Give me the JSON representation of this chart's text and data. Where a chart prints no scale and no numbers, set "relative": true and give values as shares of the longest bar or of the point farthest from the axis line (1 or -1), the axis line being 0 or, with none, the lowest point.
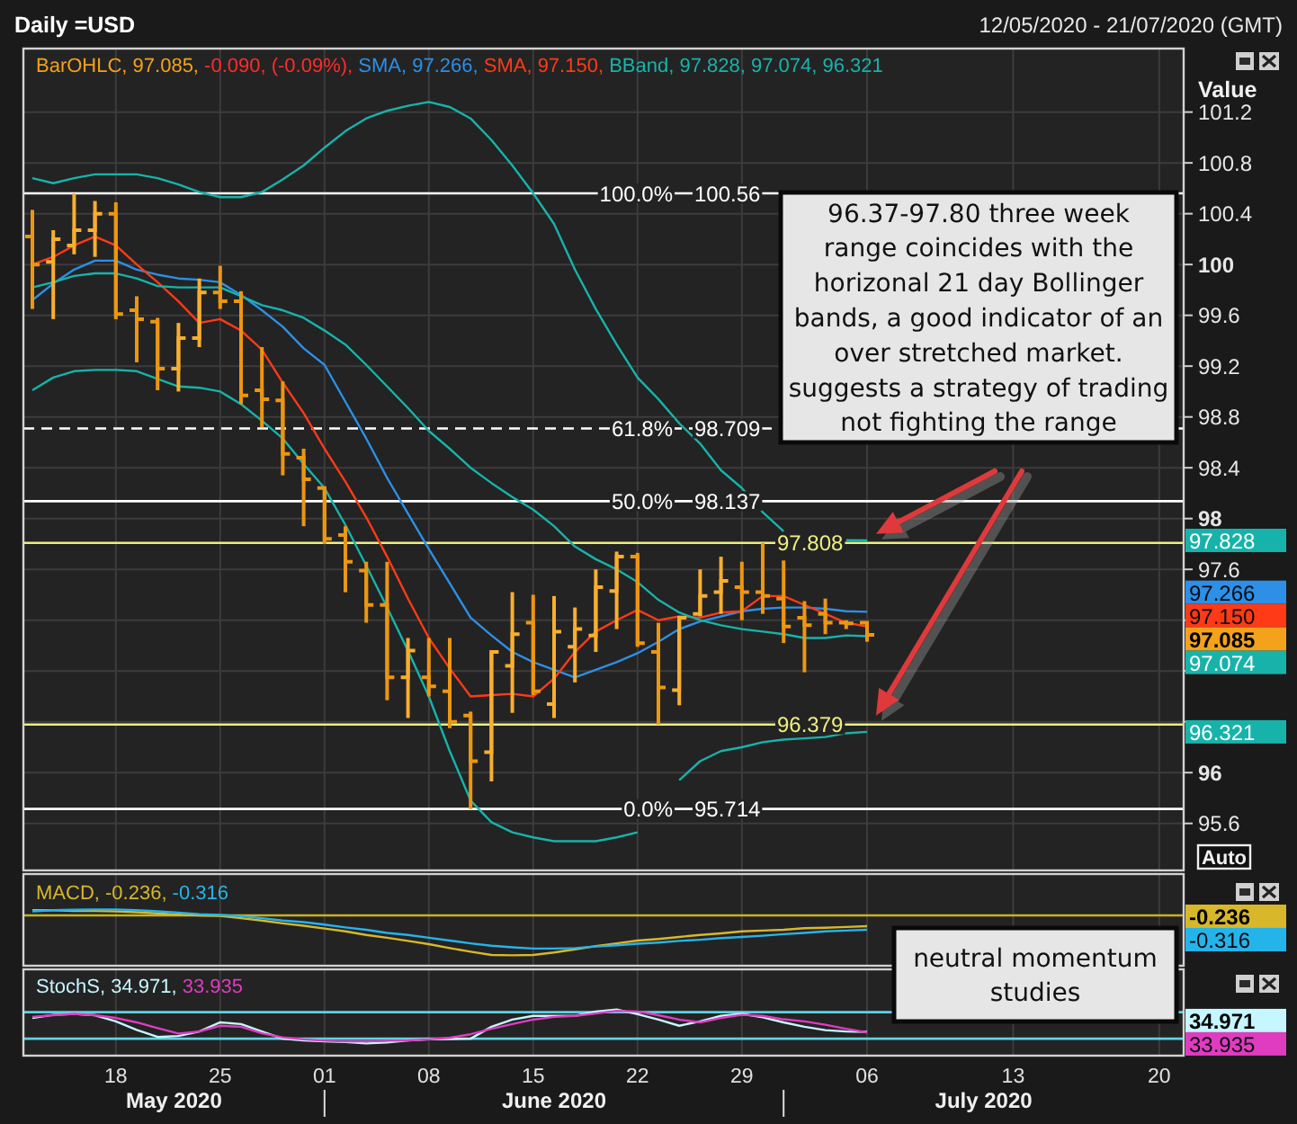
{
  "chart_data": [
    {
      "type": "candlestick",
      "title": "Daily =USD",
      "subtitle": "12/05/2020 - 21/07/2020 (GMT)",
      "ylabel": "Value",
      "categories": [
        null,
        null,
        null,
        null,
        "18",
        null,
        null,
        null,
        null,
        "25",
        null,
        null,
        null,
        null,
        "01",
        null,
        null,
        null,
        null,
        "08",
        null,
        null,
        null,
        null,
        "15",
        null,
        null,
        null,
        null,
        "22",
        null,
        null,
        null,
        null,
        "29",
        null,
        null,
        null,
        null,
        null,
        "06",
        null,
        null,
        null,
        null,
        null,
        null,
        "13",
        null,
        null,
        null,
        null,
        null,
        null,
        "20",
        null
      ],
      "color": "#f4a21c",
      "colors": [
        "#ec9612",
        "#f8ae30",
        "#f8ae30",
        "#f8ae30",
        "#ec9612",
        "#ec9612",
        "#ec9612",
        "#f8ae30",
        "#f8ae30",
        "#ec9612",
        "#ec9612",
        "#ec9612",
        "#ec9612",
        "#ec9612",
        "#ec9612",
        "#ec9612",
        "#ec9612",
        "#ec9612",
        "#f8ae30",
        "#ec9612",
        "#ec9612",
        "#ec9612",
        "#f8ae30",
        "#f8ae30",
        "#ec9612",
        "#f8ae30",
        "#f8ae30",
        "#f8ae30",
        "#f8ae30",
        "#ec9612",
        "#ec9612",
        "#f8ae30",
        "#f8ae30",
        "#f8ae30",
        "#ec9612",
        "#ec9612",
        "#ec9612",
        "#ec9612",
        "#ec9612",
        "#ec9612",
        "#ec9612",
        null,
        null,
        null,
        null,
        null,
        null,
        null,
        null,
        null,
        null,
        null,
        null,
        null,
        null,
        null
      ],
      "ohlc": [
        [
          100.22,
          100.43,
          99.65,
          100.0
        ],
        [
          100.02,
          100.27,
          99.57,
          100.2
        ],
        [
          100.15,
          100.56,
          100.08,
          100.27
        ],
        [
          100.27,
          100.5,
          100.06,
          100.4
        ],
        [
          100.4,
          100.49,
          99.57,
          99.61
        ],
        [
          99.64,
          99.75,
          99.23,
          99.57
        ],
        [
          99.55,
          99.58,
          99.01,
          99.18
        ],
        [
          99.18,
          99.54,
          99.0,
          99.42
        ],
        [
          99.42,
          99.89,
          99.35,
          99.78
        ],
        [
          99.78,
          99.99,
          99.65,
          99.71
        ],
        [
          99.71,
          99.79,
          98.9,
          98.97
        ],
        [
          99.01,
          99.35,
          98.72,
          98.94
        ],
        [
          98.93,
          99.08,
          98.34,
          98.51
        ],
        [
          98.48,
          98.55,
          97.94,
          98.31
        ],
        [
          98.24,
          98.25,
          97.8,
          97.84
        ],
        [
          97.87,
          97.94,
          97.42,
          97.66
        ],
        [
          97.59,
          97.66,
          97.18,
          97.32
        ],
        [
          97.32,
          97.66,
          96.57,
          96.75
        ],
        [
          96.75,
          97.06,
          96.43,
          96.96
        ],
        [
          96.75,
          97.06,
          96.6,
          96.68
        ],
        [
          96.64,
          97.06,
          96.35,
          96.4
        ],
        [
          96.45,
          96.48,
          95.714,
          96.09
        ],
        [
          96.16,
          96.96,
          95.93,
          96.95
        ],
        [
          96.84,
          97.42,
          96.47,
          97.09
        ],
        [
          97.18,
          97.4,
          96.61,
          96.64
        ],
        [
          96.54,
          97.39,
          96.43,
          97.11
        ],
        [
          96.99,
          97.3,
          96.71,
          97.13
        ],
        [
          97.08,
          97.6,
          96.95,
          97.46
        ],
        [
          97.43,
          97.74,
          97.13,
          97.7
        ],
        [
          97.7,
          97.73,
          96.99,
          97.02
        ],
        [
          96.95,
          97.18,
          96.379,
          96.67
        ],
        [
          96.65,
          97.23,
          96.53,
          97.22
        ],
        [
          97.25,
          97.6,
          97.23,
          97.39
        ],
        [
          97.42,
          97.7,
          97.25,
          97.51
        ],
        [
          97.46,
          97.66,
          97.2,
          97.42
        ],
        [
          97.42,
          97.808,
          97.25,
          97.39
        ],
        [
          97.37,
          97.67,
          97.02,
          97.15
        ],
        [
          97.22,
          97.35,
          96.79,
          97.16
        ],
        [
          97.25,
          97.37,
          97.09,
          97.18
        ],
        [
          97.18,
          97.2,
          97.13,
          97.175
        ],
        [
          97.18,
          97.19,
          97.03,
          97.085
        ],
        null,
        null,
        null,
        null,
        null,
        null,
        null,
        null,
        null,
        null,
        null,
        null,
        null,
        null,
        null
      ],
      "series": [
        {
          "type": "line",
          "color": "#2d8fe6",
          "values": [
            99.72,
            99.85,
            99.96,
            100.03,
            100.03,
            99.96,
            99.92,
            99.89,
            99.88,
            99.86,
            99.76,
            99.64,
            99.51,
            99.34,
            99.21,
            98.92,
            98.63,
            98.32,
            98.04,
            97.76,
            97.49,
            97.22,
            97.08,
            96.95,
            96.87,
            96.81,
            96.75,
            96.81,
            96.87,
            96.94,
            97.03,
            97.13,
            97.19,
            97.23,
            97.27,
            97.29,
            97.3,
            97.3,
            97.29,
            97.27,
            97.266,
            null,
            null,
            null,
            null,
            null,
            null,
            null,
            null,
            null,
            null,
            null,
            null,
            null,
            null,
            null
          ]
        },
        {
          "type": "line",
          "color": "#ff3a17",
          "values": [
            100.0,
            100.06,
            100.15,
            100.22,
            100.15,
            100.0,
            99.86,
            99.71,
            99.54,
            99.57,
            99.48,
            99.33,
            99.07,
            98.83,
            98.55,
            98.29,
            98.01,
            97.7,
            97.37,
            97.06,
            96.82,
            96.6,
            96.61,
            96.62,
            96.6,
            96.74,
            96.95,
            97.11,
            97.2,
            97.28,
            97.2,
            97.23,
            97.22,
            97.26,
            97.27,
            97.39,
            97.39,
            97.32,
            97.25,
            97.18,
            97.15,
            null,
            null,
            null,
            null,
            null,
            null,
            null,
            null,
            null,
            null,
            null,
            null,
            null,
            null,
            null
          ]
        },
        {
          "type": "line",
          "color": "#17b3aa",
          "values": [
            100.68,
            100.64,
            100.68,
            100.71,
            100.71,
            100.71,
            100.68,
            100.63,
            100.57,
            100.53,
            100.53,
            100.57,
            100.67,
            100.78,
            100.92,
            101.05,
            101.15,
            101.21,
            101.25,
            101.28,
            101.24,
            101.15,
            100.98,
            100.78,
            100.56,
            100.32,
            99.96,
            99.65,
            99.37,
            99.11,
            98.94,
            98.75,
            98.59,
            98.38,
            98.24,
            98.05,
            97.9,
            null,
            null,
            97.83,
            97.828,
            null,
            null,
            null,
            null,
            null,
            null,
            null,
            null,
            null,
            null,
            null,
            null,
            null,
            null,
            null
          ]
        },
        {
          "type": "line",
          "color": "#17b3aa",
          "values": [
            99.82,
            99.86,
            99.91,
            99.93,
            99.93,
            99.89,
            99.83,
            99.82,
            99.82,
            99.82,
            99.75,
            99.68,
            99.64,
            99.58,
            99.48,
            99.37,
            99.21,
            99.04,
            98.87,
            98.69,
            98.55,
            98.4,
            98.28,
            98.17,
            98.07,
            97.94,
            97.78,
            97.68,
            97.6,
            97.5,
            97.36,
            97.26,
            97.2,
            97.16,
            97.13,
            97.11,
            97.09,
            97.06,
            97.06,
            97.08,
            97.074,
            null,
            null,
            null,
            null,
            null,
            null,
            null,
            null,
            null,
            null,
            null,
            null,
            null,
            null,
            null
          ]
        },
        {
          "type": "line",
          "color": "#17b3aa",
          "values": [
            99.01,
            99.11,
            99.16,
            99.17,
            99.17,
            99.16,
            99.1,
            99.04,
            99.03,
            99.0,
            98.9,
            98.77,
            98.63,
            98.43,
            98.24,
            97.95,
            97.63,
            97.3,
            96.96,
            96.6,
            96.17,
            95.78,
            95.61,
            95.53,
            95.49,
            95.46,
            95.46,
            95.46,
            95.49,
            95.53,
            null,
            95.94,
            96.09,
            96.17,
            96.2,
            96.24,
            96.26,
            96.27,
            96.28,
            96.31,
            96.321,
            null,
            null,
            null,
            null,
            null,
            null,
            null,
            null,
            null,
            null,
            null,
            null,
            null,
            null,
            null
          ]
        }
      ],
      "ylim": [
        95.23,
        101.7
      ],
      "yticks": [
        95.6,
        96,
        {
          "value": 96.4,
          "label": null
        },
        {
          "value": 96.8,
          "label": null
        },
        {
          "value": 97.2,
          "label": null
        },
        97.6,
        98,
        98.4,
        98.8,
        99.2,
        99.6,
        100,
        100.4,
        100.8,
        101.2
      ],
      "grid": true,
      "ref_lines": [
        {
          "axis": "y",
          "value": 100.56,
          "label": "100.56",
          "color": "#ffffff"
        },
        {
          "axis": "y",
          "value": 98.709,
          "label": "98.709",
          "color": "#ffffff",
          "line_style": "dashed"
        },
        {
          "axis": "y",
          "value": 98.137,
          "label": "98.137",
          "color": "#ffffff"
        },
        {
          "axis": "y",
          "value": 95.714,
          "label": "95.714",
          "color": "#ffffff"
        },
        {
          "axis": "y",
          "value": 97.808,
          "label": "97.808",
          "color": "#eeee80"
        },
        {
          "axis": "y",
          "value": 96.379,
          "label": "96.379",
          "color": "#eeee80"
        }
      ],
      "tick_labels": "y",
      "annotations": [
        "BarOHLC, 97.085,",
        "-0.090, (-0.09%),",
        "SMA, 97.266,",
        "SMA, 97.150,",
        "BBand, 97.828, 97.074, 96.321",
        "96.37-97.80 three week range coincides with the horizonal 21 day Bollinger bands, a good indicator of an over stretched market. suggests a strategy of trading not fighting the range",
        "Auto",
        "97.085",
        "97.266",
        "97.150",
        "97.828",
        "97.074",
        "96.321",
        {
          "text": "100.0%",
          "y": 100.56
        },
        {
          "text": "61.8%",
          "y": 98.709
        },
        {
          "text": "50.0%",
          "y": 98.137
        },
        {
          "text": "0.0%",
          "y": 95.714
        }
      ]
    },
    {
      "type": "line",
      "relative": true,
      "categories": [
        null,
        null,
        null,
        null,
        "18",
        null,
        null,
        null,
        null,
        "25",
        null,
        null,
        null,
        null,
        "01",
        null,
        null,
        null,
        null,
        "08",
        null,
        null,
        null,
        null,
        "15",
        null,
        null,
        null,
        null,
        "22",
        null,
        null,
        null,
        null,
        "29",
        null,
        null,
        null,
        null,
        null,
        "06",
        null,
        null,
        null,
        null,
        null,
        null,
        "13",
        null,
        null,
        null,
        null,
        null,
        null,
        "20",
        null
      ],
      "series": [
        {
          "color": "#d8b82a",
          "values": [
            0.13,
            0.13,
            0.11,
            0.11,
            0.1,
            0.08,
            0.05,
            0.02,
            0,
            -0.01,
            -0.07,
            -0.13,
            -0.2,
            -0.26,
            -0.33,
            -0.4,
            -0.49,
            -0.56,
            -0.64,
            -0.72,
            -0.82,
            -0.91,
            -0.99,
            -1,
            -0.99,
            -0.93,
            -0.85,
            -0.77,
            -0.7,
            -0.63,
            -0.59,
            -0.54,
            -0.49,
            -0.45,
            -0.4,
            -0.38,
            -0.36,
            -0.32,
            -0.31,
            -0.29,
            -0.27,
            null,
            null,
            null,
            null,
            null,
            null,
            null,
            null,
            null,
            null,
            null,
            null,
            null,
            null,
            null
          ]
        },
        {
          "color": "#25b4ea",
          "values": [
            0.1,
            0.13,
            0.14,
            0.15,
            0.15,
            0.13,
            0.1,
            0.07,
            0.03,
            0.01,
            -0.02,
            -0.07,
            -0.13,
            -0.17,
            -0.23,
            -0.3,
            -0.36,
            -0.44,
            -0.49,
            -0.56,
            -0.63,
            -0.7,
            -0.76,
            -0.8,
            -0.83,
            -0.83,
            -0.82,
            -0.78,
            -0.75,
            -0.71,
            -0.68,
            -0.64,
            -0.61,
            -0.57,
            -0.54,
            -0.51,
            -0.47,
            -0.44,
            -0.4,
            -0.38,
            -0.36,
            null,
            null,
            null,
            null,
            null,
            null,
            null,
            null,
            null,
            null,
            null,
            null,
            null,
            null,
            null
          ]
        }
      ],
      "grid": "x",
      "ref_lines": [
        {
          "axis": "y",
          "value": 0,
          "color": "#c9b21e"
        }
      ],
      "tick_labels": false,
      "annotations": [
        "MACD, -0.236,",
        "-0.316",
        "neutral momentum studies",
        "-0.236",
        "-0.316"
      ]
    },
    {
      "type": "line",
      "relative": true,
      "categories": [
        null,
        null,
        null,
        null,
        "18",
        null,
        null,
        null,
        null,
        "25",
        null,
        null,
        null,
        null,
        "01",
        null,
        null,
        null,
        null,
        "08",
        null,
        null,
        null,
        null,
        "15",
        null,
        null,
        null,
        null,
        "22",
        null,
        null,
        null,
        null,
        "29",
        null,
        null,
        null,
        null,
        null,
        "06",
        null,
        null,
        null,
        null,
        null,
        null,
        "13",
        null,
        null,
        null,
        null,
        null,
        null,
        "20",
        null
      ],
      "series": [
        {
          "color": "#c6f6ff",
          "values": [
            0.75,
            0.84,
            0.87,
            0.83,
            0.65,
            0.4,
            0.19,
            0.22,
            0.35,
            0.62,
            0.57,
            0.35,
            0.14,
            0.09,
            0.06,
            0.04,
            0,
            0.03,
            0.09,
            0.12,
            0.13,
            0.14,
            0.49,
            0.7,
            0.81,
            0.81,
            0.81,
            0.94,
            1,
            0.86,
            0.7,
            0.52,
            0.65,
            0.81,
            0.87,
            0.77,
            0.62,
            0.49,
            0.39,
            0.35,
            0.34,
            null,
            null,
            null,
            null,
            null,
            null,
            null,
            null,
            null,
            null,
            null,
            null,
            null,
            null,
            null
          ]
        },
        {
          "color": "#e03cc0",
          "values": [
            0.78,
            0.83,
            0.87,
            0.83,
            0.75,
            0.62,
            0.45,
            0.29,
            0.35,
            0.52,
            0.49,
            0.3,
            0.18,
            0.12,
            0.08,
            0.06,
            0.06,
            0.08,
            0.09,
            0.12,
            0.17,
            0.27,
            0.43,
            0.57,
            0.7,
            0.78,
            0.81,
            0.88,
            0.96,
            0.94,
            0.83,
            0.7,
            0.62,
            0.75,
            0.84,
            0.81,
            0.71,
            0.65,
            0.55,
            0.43,
            0.32,
            null,
            null,
            null,
            null,
            null,
            null,
            null,
            null,
            null,
            null,
            null,
            null,
            null,
            null,
            null
          ]
        }
      ],
      "grid": "x",
      "ref_lines": [
        {
          "axis": "y",
          "value": 0.92,
          "color": "#5fd3e3"
        },
        {
          "axis": "y",
          "value": 0.14,
          "color": "#5fd3e3"
        }
      ],
      "tick_labels": "x",
      "annotations": [
        "StochS, 34.971,",
        "33.935",
        "May 2020",
        "June 2020",
        "July 2020",
        "34.971",
        "33.935"
      ]
    }
  ]
}
